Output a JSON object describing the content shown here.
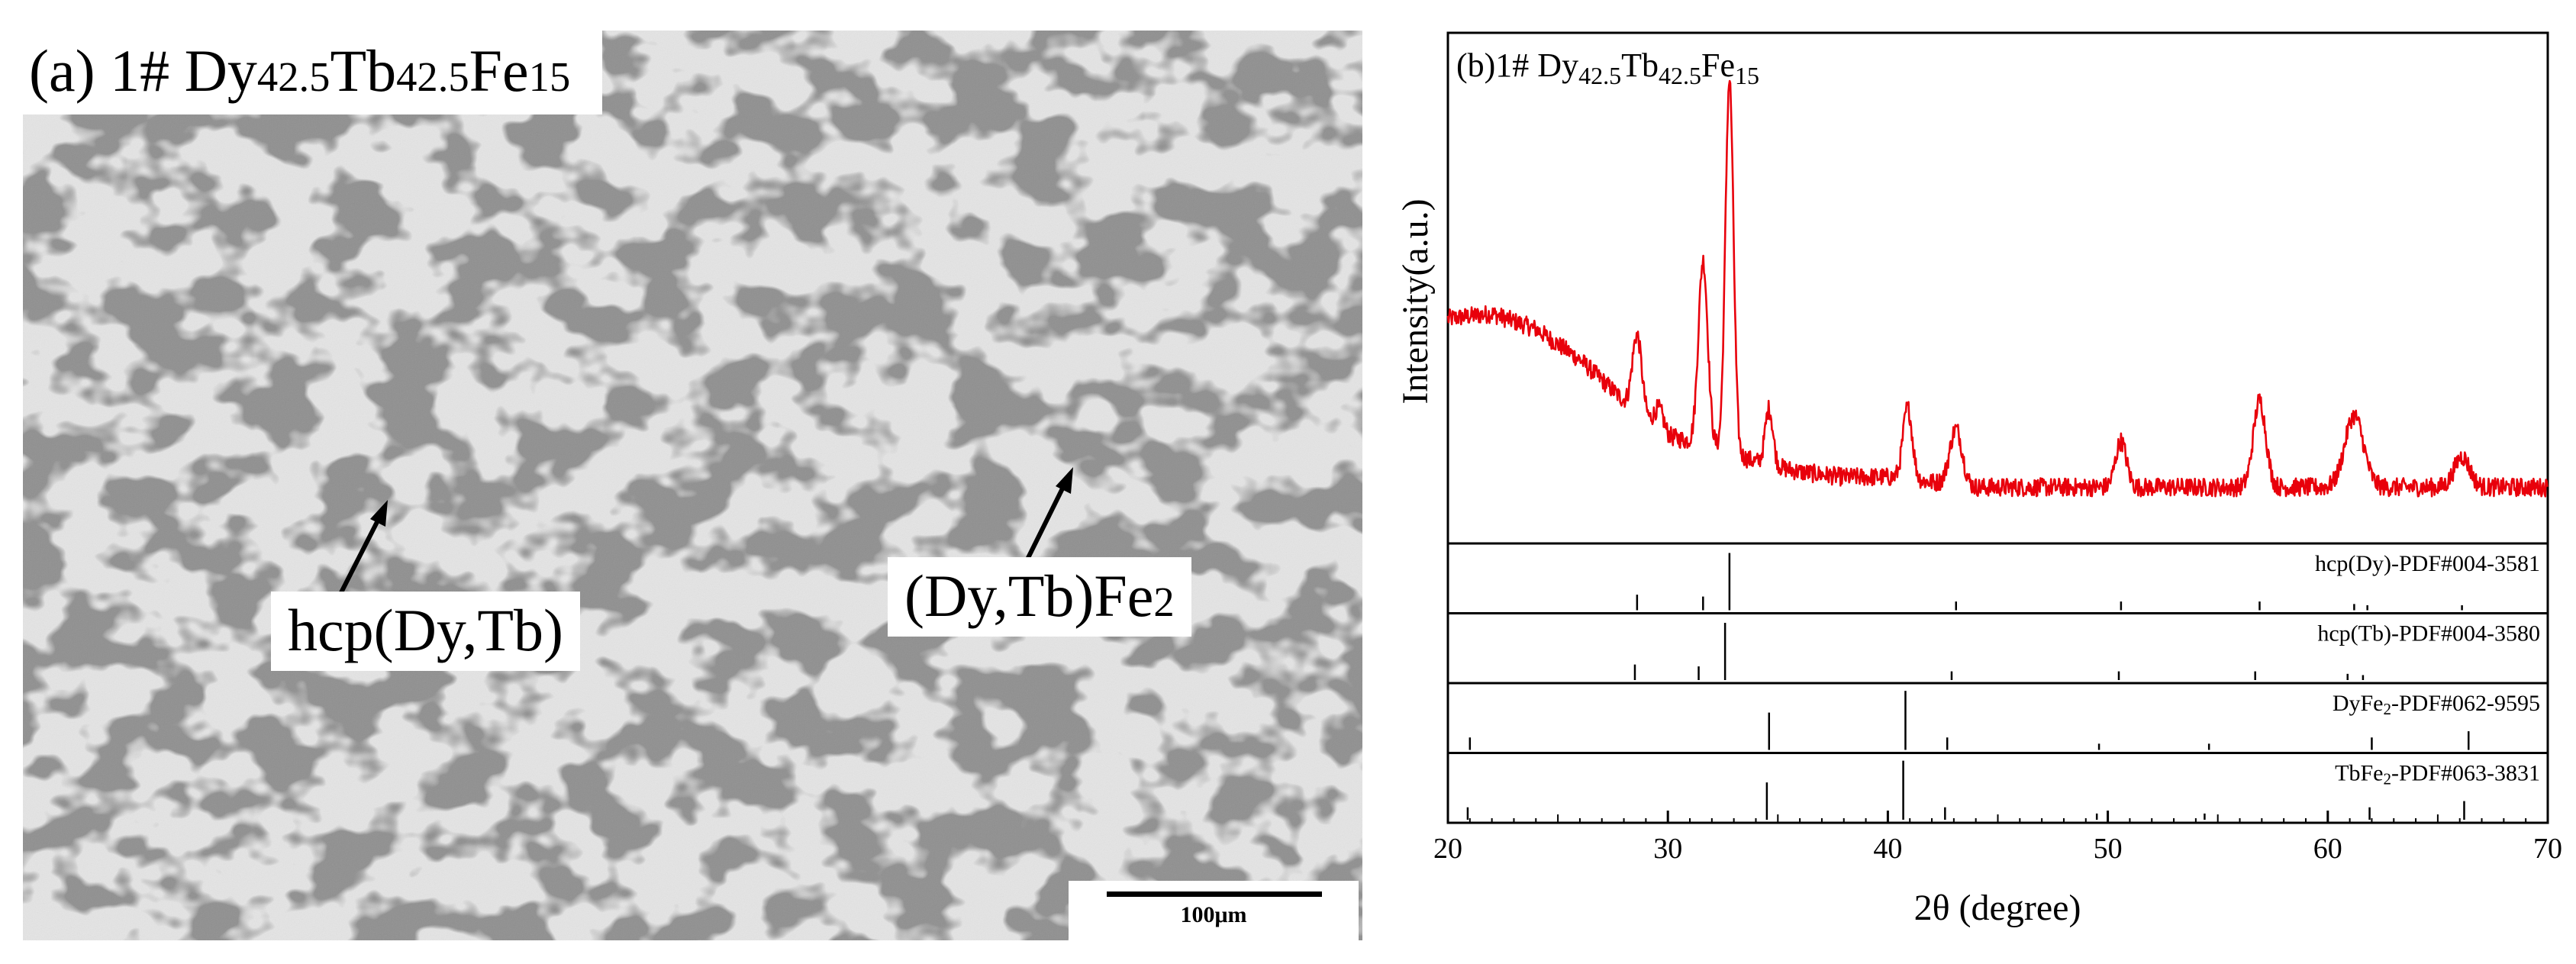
{
  "panel_a": {
    "title_prefix": "(a) 1# Dy",
    "title_sub1": "42.5",
    "title_mid": "Tb",
    "title_sub2": "42.5",
    "title_end": "Fe",
    "title_sub3": "15",
    "label_hcp": "hcp(Dy,Tb)",
    "label_fe2_main": "(Dy,Tb)Fe",
    "label_fe2_sub": "2",
    "scale_text": "100μm"
  },
  "colors": {
    "xrd_line": "#e8000b",
    "matrix": "#8f8f8f",
    "dendrite": "#c7c7c7"
  },
  "chart_data": {
    "type": "line",
    "title": "(b)1# Dy42.5Tb42.5Fe15",
    "title_parts": {
      "prefix": "(b)1# Dy",
      "sub1": "42.5",
      "mid": "Tb",
      "sub2": "42.5",
      "end": "Fe",
      "sub3": "15"
    },
    "xlabel": "2θ (degree)",
    "ylabel": "Intensity(a.u.)",
    "xlim": [
      20,
      70
    ],
    "x_ticks": [
      20,
      30,
      40,
      50,
      60,
      70
    ],
    "y_range_au": [
      0,
      100
    ],
    "xrd_baseline": [
      [
        20,
        44
      ],
      [
        22,
        45
      ],
      [
        24,
        42
      ],
      [
        26,
        36
      ],
      [
        28,
        28
      ],
      [
        30,
        21
      ],
      [
        32,
        19
      ],
      [
        34,
        16
      ],
      [
        36,
        14
      ],
      [
        38,
        13
      ],
      [
        40,
        13
      ],
      [
        42,
        12
      ],
      [
        44,
        11
      ],
      [
        46,
        11
      ],
      [
        50,
        11
      ],
      [
        55,
        11
      ],
      [
        60,
        11
      ],
      [
        65,
        11
      ],
      [
        70,
        11
      ]
    ],
    "xrd_peaks": [
      {
        "x": 28.6,
        "height": 15,
        "width": 0.3
      },
      {
        "x": 29.6,
        "height": 4,
        "width": 0.3
      },
      {
        "x": 31.6,
        "height": 36,
        "width": 0.3
      },
      {
        "x": 32.8,
        "height": 73,
        "width": 0.26
      },
      {
        "x": 34.6,
        "height": 11,
        "width": 0.25
      },
      {
        "x": 40.9,
        "height": 14,
        "width": 0.3
      },
      {
        "x": 43.1,
        "height": 11,
        "width": 0.4
      },
      {
        "x": 50.6,
        "height": 9,
        "width": 0.35
      },
      {
        "x": 56.9,
        "height": 17,
        "width": 0.4
      },
      {
        "x": 61.2,
        "height": 14,
        "width": 0.6
      },
      {
        "x": 66.1,
        "height": 6,
        "width": 0.5
      }
    ],
    "reference_patterns": [
      {
        "name": "hcp(Dy)-PDF#004-3581",
        "label_main": "hcp(Dy)-PDF#004-3581",
        "lines": [
          [
            28.6,
            0.25
          ],
          [
            31.6,
            0.22
          ],
          [
            32.8,
            0.92
          ],
          [
            43.1,
            0.14
          ],
          [
            50.6,
            0.14
          ],
          [
            56.9,
            0.14
          ],
          [
            61.2,
            0.1
          ],
          [
            61.8,
            0.08
          ],
          [
            66.1,
            0.08
          ]
        ]
      },
      {
        "name": "hcp(Tb)-PDF#004-3580",
        "label_main": "hcp(Tb)-PDF#004-3580",
        "lines": [
          [
            28.5,
            0.25
          ],
          [
            31.4,
            0.22
          ],
          [
            32.6,
            0.92
          ],
          [
            42.9,
            0.14
          ],
          [
            50.5,
            0.14
          ],
          [
            56.7,
            0.14
          ],
          [
            60.9,
            0.1
          ],
          [
            61.6,
            0.08
          ]
        ]
      },
      {
        "name": "DyFe2-PDF#062-9595",
        "label_main": "DyFe",
        "label_sub": "2",
        "label_end": "-PDF#062-9595",
        "lines": [
          [
            21.0,
            0.2
          ],
          [
            34.6,
            0.6
          ],
          [
            40.8,
            0.95
          ],
          [
            42.7,
            0.2
          ],
          [
            49.6,
            0.1
          ],
          [
            54.6,
            0.1
          ],
          [
            62.0,
            0.2
          ],
          [
            66.4,
            0.3
          ]
        ]
      },
      {
        "name": "TbFe2-PDF#063-3831",
        "label_main": "TbFe",
        "label_sub": "2",
        "label_end": "-PDF#063-3831",
        "lines": [
          [
            20.9,
            0.2
          ],
          [
            34.5,
            0.6
          ],
          [
            40.7,
            0.95
          ],
          [
            42.6,
            0.2
          ],
          [
            49.5,
            0.1
          ],
          [
            54.4,
            0.1
          ],
          [
            61.9,
            0.2
          ],
          [
            66.2,
            0.3
          ]
        ]
      }
    ]
  }
}
